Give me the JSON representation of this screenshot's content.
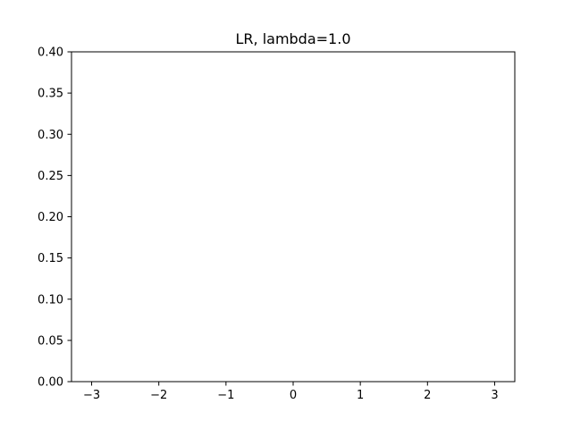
{
  "chart_data": {
    "type": "line",
    "title": "LR, lambda=1.0",
    "xlabel": "",
    "ylabel": "",
    "xlim": [
      -3.3,
      3.3
    ],
    "ylim": [
      0.0,
      0.4
    ],
    "x_ticks": [
      -3,
      -2,
      -1,
      0,
      1,
      2,
      3
    ],
    "x_tick_labels": [
      "−3",
      "−2",
      "−1",
      "0",
      "1",
      "2",
      "3"
    ],
    "y_ticks": [
      0.0,
      0.05,
      0.1,
      0.15,
      0.2,
      0.25,
      0.3,
      0.35,
      0.4
    ],
    "y_tick_labels": [
      "0.00",
      "0.05",
      "0.10",
      "0.15",
      "0.20",
      "0.25",
      "0.30",
      "0.35",
      "0.40"
    ],
    "series": [],
    "grid": false,
    "legend": "none",
    "colors": {
      "axes": "#000000",
      "background": "#ffffff"
    }
  }
}
